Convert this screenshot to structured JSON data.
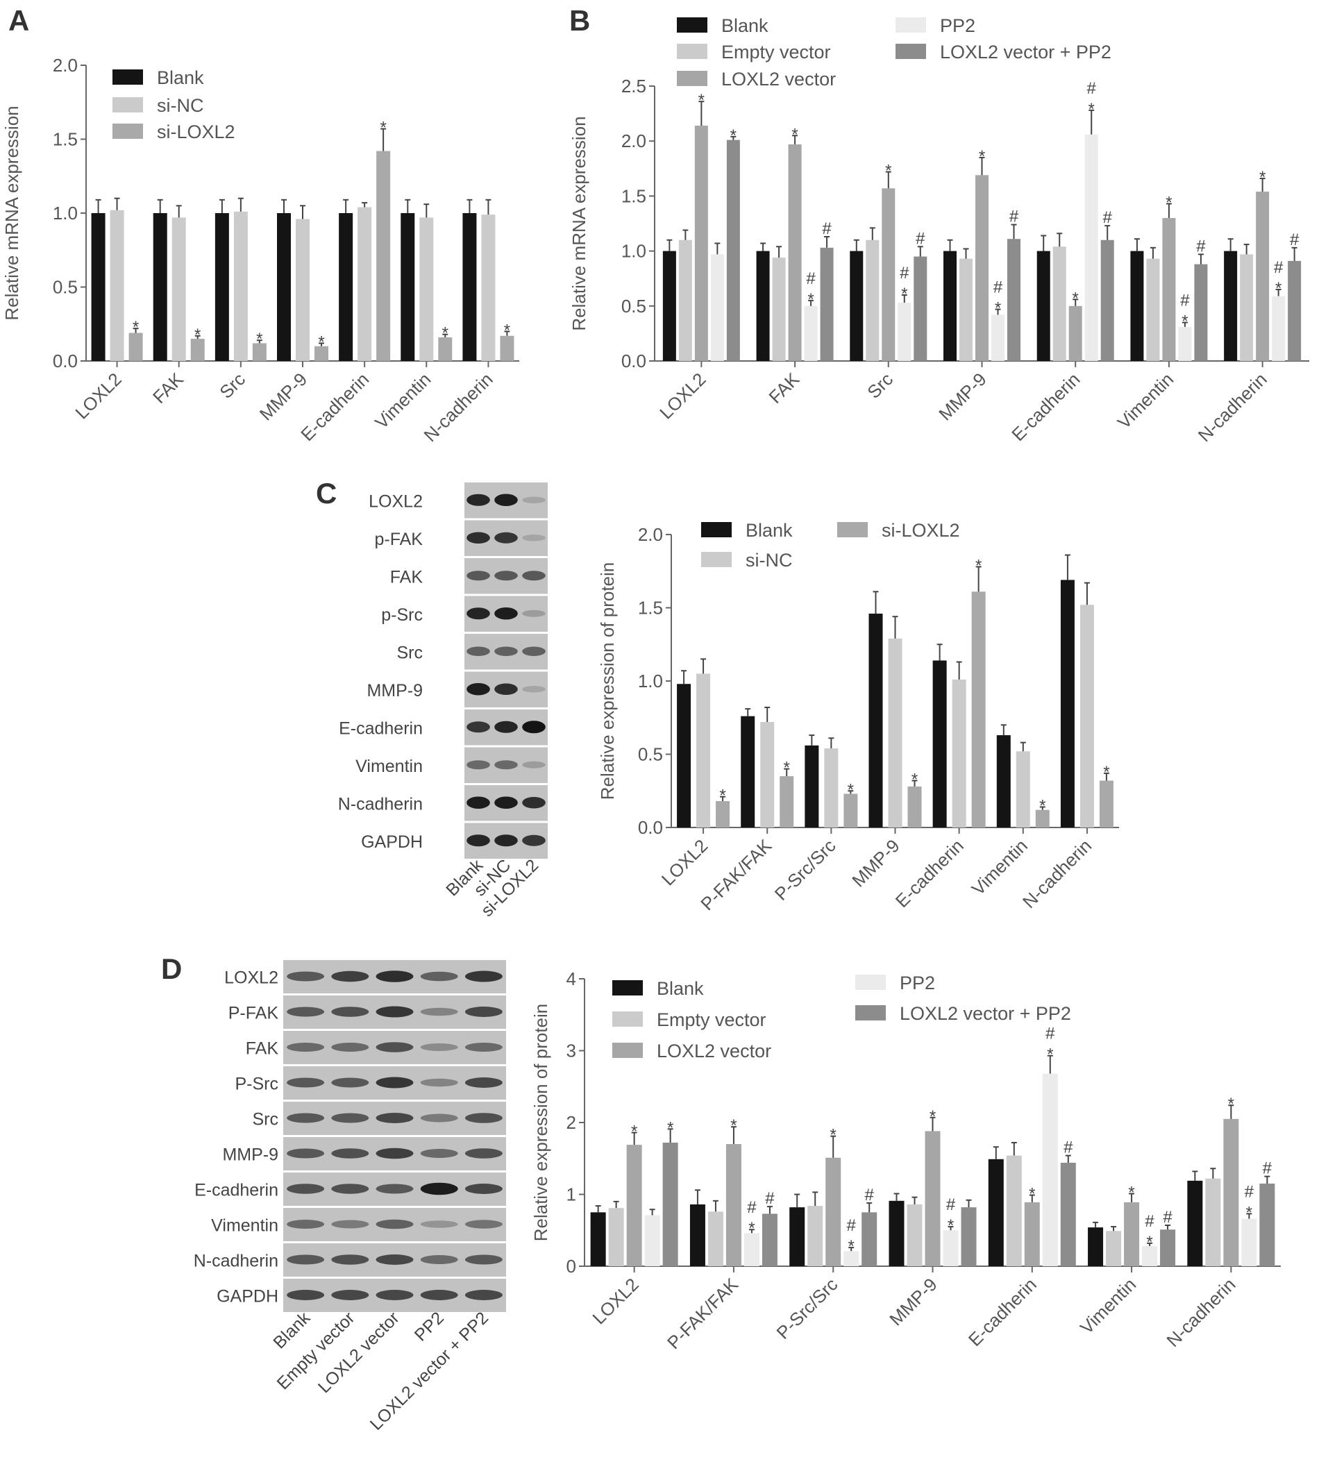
{
  "panels": {
    "A": "A",
    "B": "B",
    "C": "C",
    "D": "D"
  },
  "chart_data": [
    {
      "id": "A",
      "type": "bar",
      "title": "",
      "xlabel": "",
      "ylabel": "Relative mRNA expression",
      "ylim": [
        0,
        2.0
      ],
      "yticks": [
        "0.0",
        "0.5",
        "1.0",
        "1.5",
        "2.0"
      ],
      "ytick_values": [
        0,
        0.5,
        1.0,
        1.5,
        2.0
      ],
      "categories": [
        "LOXL2",
        "FAK",
        "Src",
        "MMP-9",
        "E-cadherin",
        "Vimentin",
        "N-cadherin"
      ],
      "legend_position": "top-left",
      "series": [
        {
          "name": "Blank",
          "color": "#141414",
          "values": [
            1.0,
            1.0,
            1.0,
            1.0,
            1.0,
            1.0,
            1.0
          ],
          "errors": [
            0.09,
            0.09,
            0.09,
            0.09,
            0.09,
            0.09,
            0.09
          ],
          "annotations": [
            "",
            "",
            "",
            "",
            "",
            "",
            ""
          ]
        },
        {
          "name": "si-NC",
          "color": "#cbcbcb",
          "values": [
            1.02,
            0.97,
            1.01,
            0.96,
            1.04,
            0.97,
            0.99
          ],
          "errors": [
            0.08,
            0.08,
            0.09,
            0.09,
            0.03,
            0.09,
            0.1
          ],
          "annotations": [
            "",
            "",
            "",
            "",
            "",
            "",
            ""
          ]
        },
        {
          "name": "si-LOXL2",
          "color": "#a9a9a9",
          "values": [
            0.19,
            0.15,
            0.12,
            0.1,
            1.42,
            0.16,
            0.17
          ],
          "errors": [
            0.03,
            0.02,
            0.02,
            0.02,
            0.15,
            0.02,
            0.03
          ],
          "annotations": [
            "*",
            "*",
            "*",
            "*",
            "*",
            "*",
            "*"
          ]
        }
      ]
    },
    {
      "id": "B",
      "type": "bar",
      "title": "",
      "xlabel": "",
      "ylabel": "Relative mRNA expression",
      "ylim": [
        0,
        2.5
      ],
      "yticks": [
        "0.0",
        "0.5",
        "1.0",
        "1.5",
        "2.0",
        "2.5"
      ],
      "ytick_values": [
        0,
        0.5,
        1.0,
        1.5,
        2.0,
        2.5
      ],
      "categories": [
        "LOXL2",
        "FAK",
        "Src",
        "MMP-9",
        "E-cadherin",
        "Vimentin",
        "N-cadherin"
      ],
      "legend_position": "top",
      "series": [
        {
          "name": "Blank",
          "color": "#141414",
          "values": [
            1.0,
            1.0,
            1.0,
            1.0,
            1.0,
            1.0,
            1.0
          ],
          "errors": [
            0.1,
            0.07,
            0.1,
            0.1,
            0.14,
            0.11,
            0.11
          ],
          "annotations": [
            "",
            "",
            "",
            "",
            "",
            "",
            ""
          ]
        },
        {
          "name": "Empty vector",
          "color": "#cbcbcb",
          "values": [
            1.1,
            0.94,
            1.1,
            0.93,
            1.04,
            0.93,
            0.97
          ],
          "errors": [
            0.09,
            0.1,
            0.11,
            0.09,
            0.12,
            0.1,
            0.09
          ],
          "annotations": [
            "",
            "",
            "",
            "",
            "",
            "",
            ""
          ]
        },
        {
          "name": "LOXL2 vector",
          "color": "#a6a6a6",
          "values": [
            2.14,
            1.97,
            1.57,
            1.69,
            0.5,
            1.3,
            1.54
          ],
          "errors": [
            0.22,
            0.08,
            0.15,
            0.16,
            0.06,
            0.13,
            0.12
          ],
          "annotations": [
            "*",
            "*",
            "*",
            "*",
            "*",
            "*",
            "*"
          ]
        },
        {
          "name": "PP2",
          "color": "#ebebeb",
          "values": [
            0.97,
            0.5,
            0.53,
            0.42,
            2.06,
            0.31,
            0.59
          ],
          "errors": [
            0.1,
            0.05,
            0.07,
            0.05,
            0.22,
            0.04,
            0.06
          ],
          "annotations": [
            "",
            "#*",
            "#*",
            "#*",
            "#*",
            "#*",
            "#*"
          ]
        },
        {
          "name": "LOXL2 vector + PP2",
          "color": "#8c8c8c",
          "values": [
            2.01,
            1.03,
            0.95,
            1.11,
            1.1,
            0.88,
            0.91
          ],
          "errors": [
            0.03,
            0.1,
            0.09,
            0.13,
            0.13,
            0.09,
            0.12
          ],
          "annotations": [
            "*",
            "#",
            "#",
            "#",
            "#",
            "#",
            "#"
          ]
        }
      ]
    },
    {
      "id": "C",
      "type": "bar",
      "title": "",
      "xlabel": "",
      "ylabel": "Relative expression of protein",
      "ylim": [
        0,
        2.0
      ],
      "yticks": [
        "0.0",
        "0.5",
        "1.0",
        "1.5",
        "2.0"
      ],
      "ytick_values": [
        0,
        0.5,
        1.0,
        1.5,
        2.0
      ],
      "categories": [
        "LOXL2",
        "P-FAK/FAK",
        "P-Src/Src",
        "MMP-9",
        "E-cadherin",
        "Vimentin",
        "N-cadherin"
      ],
      "legend_position": "top",
      "series": [
        {
          "name": "Blank",
          "color": "#141414",
          "values": [
            0.98,
            0.76,
            0.56,
            1.46,
            1.14,
            0.63,
            1.69
          ],
          "errors": [
            0.09,
            0.05,
            0.07,
            0.15,
            0.11,
            0.07,
            0.17
          ],
          "annotations": [
            "",
            "",
            "",
            "",
            "",
            "",
            ""
          ]
        },
        {
          "name": "si-NC",
          "color": "#cbcbcb",
          "values": [
            1.05,
            0.72,
            0.54,
            1.29,
            1.01,
            0.52,
            1.52
          ],
          "errors": [
            0.1,
            0.1,
            0.07,
            0.15,
            0.12,
            0.06,
            0.15
          ],
          "annotations": [
            "",
            "",
            "",
            "",
            "",
            "",
            ""
          ]
        },
        {
          "name": "si-LOXL2",
          "color": "#a9a9a9",
          "values": [
            0.18,
            0.35,
            0.23,
            0.28,
            1.61,
            0.12,
            0.32
          ],
          "errors": [
            0.03,
            0.05,
            0.02,
            0.04,
            0.17,
            0.02,
            0.05
          ],
          "annotations": [
            "*",
            "*",
            "*",
            "*",
            "*",
            "*",
            "*"
          ]
        }
      ]
    },
    {
      "id": "D",
      "type": "bar",
      "title": "",
      "xlabel": "",
      "ylabel": "Relative expression of protein",
      "ylim": [
        0,
        4
      ],
      "yticks": [
        "0",
        "1",
        "2",
        "3",
        "4"
      ],
      "ytick_values": [
        0,
        1,
        2,
        3,
        4
      ],
      "categories": [
        "LOXL2",
        "P-FAK/FAK",
        "P-Src/Src",
        "MMP-9",
        "E-cadherin",
        "Vimentin",
        "N-cadherin"
      ],
      "legend_position": "top",
      "series": [
        {
          "name": "Blank",
          "color": "#141414",
          "values": [
            0.75,
            0.86,
            0.82,
            0.91,
            1.49,
            0.54,
            1.19
          ],
          "errors": [
            0.09,
            0.2,
            0.18,
            0.1,
            0.17,
            0.07,
            0.13
          ],
          "annotations": [
            "",
            "",
            "",
            "",
            "",
            "",
            ""
          ]
        },
        {
          "name": "Empty vector",
          "color": "#cbcbcb",
          "values": [
            0.81,
            0.76,
            0.84,
            0.86,
            1.54,
            0.49,
            1.22
          ],
          "errors": [
            0.09,
            0.15,
            0.19,
            0.1,
            0.18,
            0.06,
            0.14
          ],
          "annotations": [
            "",
            "",
            "",
            "",
            "",
            "",
            ""
          ]
        },
        {
          "name": "LOXL2 vector",
          "color": "#a6a6a6",
          "values": [
            1.69,
            1.7,
            1.51,
            1.88,
            0.89,
            0.89,
            2.05
          ],
          "errors": [
            0.17,
            0.24,
            0.3,
            0.19,
            0.1,
            0.12,
            0.19
          ],
          "annotations": [
            "*",
            "*",
            "*",
            "*",
            "*",
            "*",
            "*"
          ]
        },
        {
          "name": "PP2",
          "color": "#ebebeb",
          "values": [
            0.71,
            0.46,
            0.21,
            0.5,
            2.68,
            0.28,
            0.66
          ],
          "errors": [
            0.08,
            0.05,
            0.05,
            0.05,
            0.25,
            0.04,
            0.07
          ],
          "annotations": [
            "",
            "#*",
            "#*",
            "#*",
            "#*",
            "#*",
            "#*"
          ]
        },
        {
          "name": "LOXL2 vector + PP2",
          "color": "#8c8c8c",
          "values": [
            1.72,
            0.73,
            0.75,
            0.82,
            1.44,
            0.51,
            1.15
          ],
          "errors": [
            0.19,
            0.1,
            0.13,
            0.1,
            0.1,
            0.06,
            0.1
          ],
          "annotations": [
            "*",
            "#",
            "#",
            "",
            "#",
            "#",
            "#"
          ]
        }
      ]
    }
  ],
  "blots": {
    "C": {
      "lanes": [
        "Blank",
        "si-NC",
        "si-LOXL2"
      ],
      "rows": [
        {
          "label": "LOXL2",
          "band_intensity": [
            0.9,
            0.95,
            0.15
          ]
        },
        {
          "label": "p-FAK",
          "band_intensity": [
            0.85,
            0.8,
            0.15
          ]
        },
        {
          "label": "FAK",
          "band_intensity": [
            0.6,
            0.6,
            0.6
          ]
        },
        {
          "label": "p-Src",
          "band_intensity": [
            0.9,
            0.95,
            0.2
          ]
        },
        {
          "label": "Src",
          "band_intensity": [
            0.55,
            0.55,
            0.55
          ]
        },
        {
          "label": "MMP-9",
          "band_intensity": [
            0.95,
            0.85,
            0.15
          ]
        },
        {
          "label": "E-cadherin",
          "band_intensity": [
            0.8,
            0.9,
            1.0
          ]
        },
        {
          "label": "Vimentin",
          "band_intensity": [
            0.5,
            0.5,
            0.2
          ]
        },
        {
          "label": "N-cadherin",
          "band_intensity": [
            0.95,
            0.95,
            0.85
          ]
        },
        {
          "label": "GAPDH",
          "band_intensity": [
            0.9,
            0.9,
            0.8
          ]
        }
      ]
    },
    "D": {
      "lanes": [
        "Blank",
        "Empty vector",
        "LOXL2 vector",
        "PP2",
        "LOXL2 vector + PP2"
      ],
      "rows": [
        {
          "label": "LOXL2",
          "band_intensity": [
            0.6,
            0.75,
            0.85,
            0.55,
            0.8
          ]
        },
        {
          "label": "P-FAK",
          "band_intensity": [
            0.6,
            0.65,
            0.8,
            0.35,
            0.7
          ]
        },
        {
          "label": "FAK",
          "band_intensity": [
            0.5,
            0.5,
            0.65,
            0.3,
            0.5
          ]
        },
        {
          "label": "P-Src",
          "band_intensity": [
            0.6,
            0.6,
            0.8,
            0.35,
            0.7
          ]
        },
        {
          "label": "Src",
          "band_intensity": [
            0.6,
            0.6,
            0.7,
            0.4,
            0.65
          ]
        },
        {
          "label": "MMP-9",
          "band_intensity": [
            0.6,
            0.65,
            0.75,
            0.5,
            0.65
          ]
        },
        {
          "label": "E-cadherin",
          "band_intensity": [
            0.65,
            0.65,
            0.6,
            0.95,
            0.7
          ]
        },
        {
          "label": "Vimentin",
          "band_intensity": [
            0.5,
            0.4,
            0.55,
            0.25,
            0.45
          ]
        },
        {
          "label": "N-cadherin",
          "band_intensity": [
            0.6,
            0.65,
            0.7,
            0.5,
            0.6
          ]
        },
        {
          "label": "GAPDH",
          "band_intensity": [
            0.7,
            0.7,
            0.7,
            0.7,
            0.7
          ]
        }
      ]
    }
  }
}
